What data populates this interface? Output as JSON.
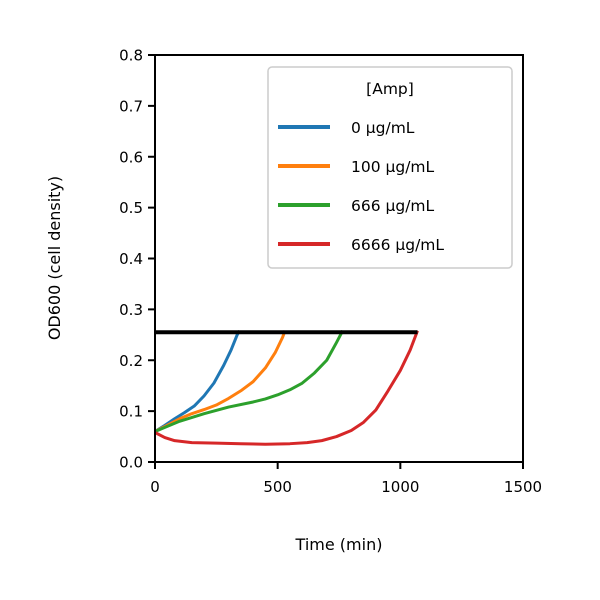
{
  "chart_data": {
    "type": "line",
    "xlabel": "Time (min)",
    "ylabel": "OD600 (cell density)",
    "xlim": [
      0,
      1500
    ],
    "ylim": [
      0,
      0.8
    ],
    "xticks": [
      "0",
      "500",
      "1000",
      "1500"
    ],
    "yticks": [
      "0.0",
      "0.1",
      "0.2",
      "0.3",
      "0.4",
      "0.5",
      "0.6",
      "0.7",
      "0.8"
    ],
    "grid": false,
    "legend": {
      "title": "[Amp]",
      "placement": "top-right"
    },
    "threshold_line": {
      "y": 0.255,
      "x_range": [
        0,
        1070
      ],
      "color": "#000000"
    },
    "series": [
      {
        "name": "0 μg/mL",
        "color": "#1f77b4",
        "points": [
          [
            0,
            0.06
          ],
          [
            40,
            0.072
          ],
          [
            80,
            0.085
          ],
          [
            120,
            0.097
          ],
          [
            160,
            0.11
          ],
          [
            200,
            0.13
          ],
          [
            240,
            0.155
          ],
          [
            280,
            0.19
          ],
          [
            310,
            0.22
          ],
          [
            335,
            0.25
          ],
          [
            345,
            0.258
          ]
        ]
      },
      {
        "name": "100 μg/mL",
        "color": "#ff7f0e",
        "points": [
          [
            0,
            0.06
          ],
          [
            50,
            0.072
          ],
          [
            100,
            0.085
          ],
          [
            150,
            0.095
          ],
          [
            200,
            0.103
          ],
          [
            250,
            0.112
          ],
          [
            300,
            0.125
          ],
          [
            350,
            0.14
          ],
          [
            400,
            0.158
          ],
          [
            450,
            0.185
          ],
          [
            490,
            0.215
          ],
          [
            520,
            0.245
          ],
          [
            530,
            0.258
          ]
        ]
      },
      {
        "name": "666 μg/mL",
        "color": "#2ca02c",
        "points": [
          [
            0,
            0.06
          ],
          [
            100,
            0.08
          ],
          [
            200,
            0.095
          ],
          [
            300,
            0.108
          ],
          [
            400,
            0.118
          ],
          [
            450,
            0.124
          ],
          [
            500,
            0.132
          ],
          [
            550,
            0.142
          ],
          [
            600,
            0.155
          ],
          [
            650,
            0.175
          ],
          [
            700,
            0.2
          ],
          [
            740,
            0.235
          ],
          [
            765,
            0.258
          ]
        ]
      },
      {
        "name": "6666 μg/mL",
        "color": "#d62728",
        "points": [
          [
            0,
            0.058
          ],
          [
            40,
            0.048
          ],
          [
            80,
            0.042
          ],
          [
            150,
            0.038
          ],
          [
            250,
            0.037
          ],
          [
            350,
            0.036
          ],
          [
            450,
            0.035
          ],
          [
            550,
            0.036
          ],
          [
            620,
            0.038
          ],
          [
            680,
            0.042
          ],
          [
            740,
            0.05
          ],
          [
            800,
            0.062
          ],
          [
            850,
            0.078
          ],
          [
            900,
            0.102
          ],
          [
            950,
            0.14
          ],
          [
            1000,
            0.18
          ],
          [
            1040,
            0.22
          ],
          [
            1070,
            0.258
          ]
        ]
      }
    ]
  }
}
